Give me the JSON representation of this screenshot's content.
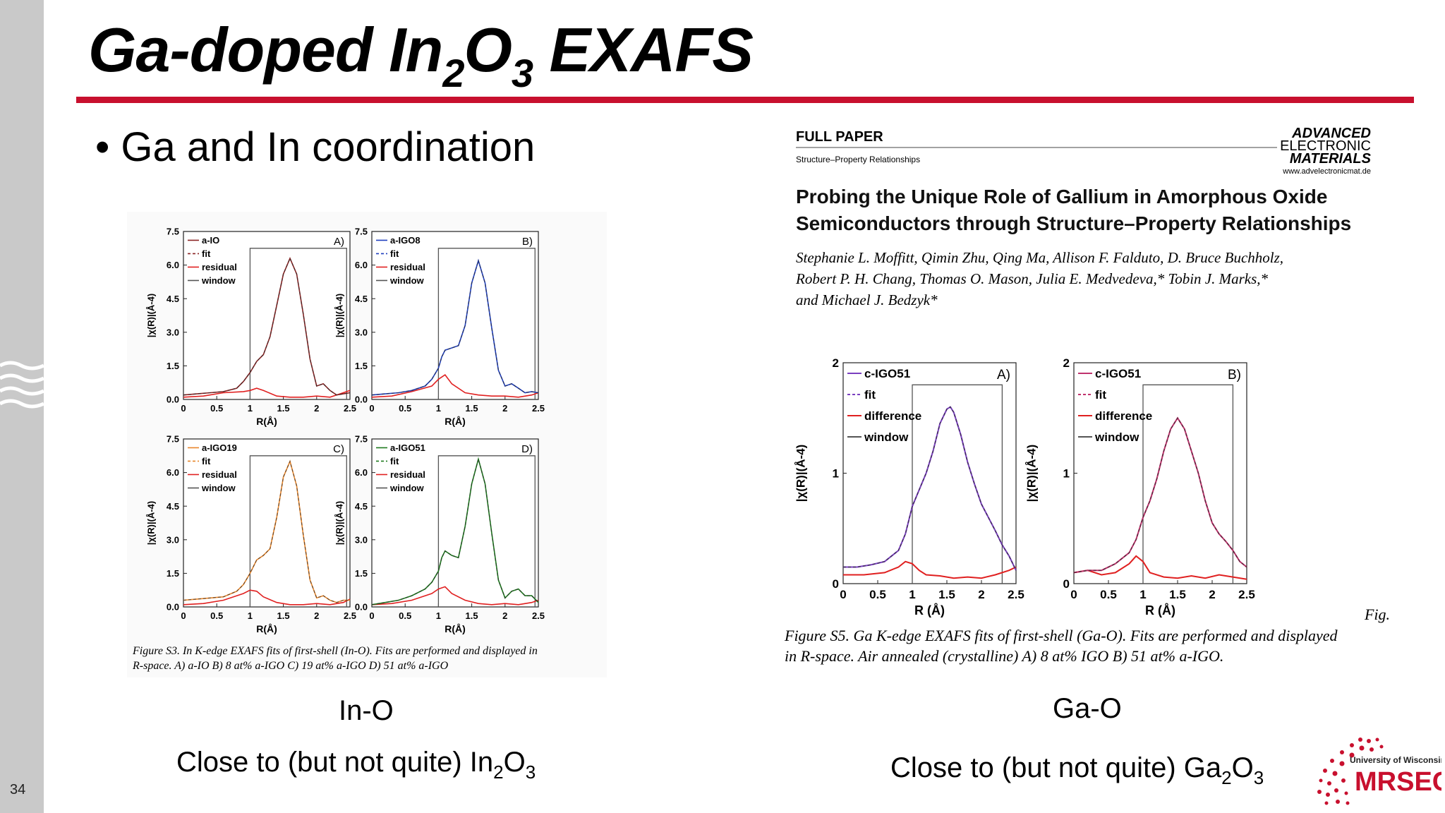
{
  "slide": {
    "title_main": "Ga-doped In",
    "title_sub1": "2",
    "title_mid": "O",
    "title_sub2": "3",
    "title_end": " EXAFS",
    "bullet": "• Ga and In coordination",
    "slide_number": "34",
    "left_caption": "In-O",
    "left_note": "Close to (but not quite) In",
    "left_note_sub1": "2",
    "left_note_o": "O",
    "left_note_sub2": "3",
    "right_caption": "Ga-O",
    "right_note": "Close to (but not quite) Ga",
    "right_note_sub1": "2",
    "right_note_o": "O",
    "right_note_sub2": "3",
    "logo_top": "University of Wisconsin",
    "logo_main": "MRSEC"
  },
  "paper": {
    "label": "FULL PAPER",
    "section": "Structure–Property Relationships",
    "journal1": "ADVANCED",
    "journal2": "ELECTRONIC",
    "journal3": "MATERIALS",
    "journal_url": "www.advelectronicmat.de",
    "title1": "Probing the Unique Role of Gallium in Amorphous Oxide",
    "title2": "Semiconductors through Structure–Property Relationships",
    "authors1": "Stephanie L. Moffitt, Qimin Zhu, Qing Ma, Allison F. Falduto, D. Bruce Buchholz,",
    "authors2": "Robert P. H. Chang, Thomas O. Mason, Julia E. Medvedeva,* Tobin J. Marks,*",
    "authors3": "and Michael J. Bedzyk*"
  },
  "figure_s3_caption1": "Figure S3. In K-edge EXAFS fits of first-shell (In-O). Fits are performed and displayed in",
  "figure_s3_caption2": "R-space. A) a-IO B) 8 at% a-IGO C) 19 at% a-IGO D) 51 at% a-IGO",
  "figure_s5_fig": "Fig.",
  "figure_s5_caption1": "Figure S5. Ga K-edge EXAFS fits of first-shell (Ga-O). Fits are performed and displayed",
  "figure_s5_caption2": "in R-space. Air annealed (crystalline) A) 8 at% IGO B) 51 at% a-IGO.",
  "chart_data": [
    {
      "type": "line",
      "panel": "A)",
      "sample": "a-IO",
      "color": "#8b2525",
      "xlabel": "R(Å)",
      "ylabel": "|χ(R)|(Å-4)",
      "xlim": [
        0,
        2.5
      ],
      "ylim": [
        0,
        7.5
      ],
      "xticks": [
        "0",
        "0.5",
        "1",
        "1.5",
        "2",
        "2.5"
      ],
      "yticks": [
        "0.0",
        "1.5",
        "3.0",
        "4.5",
        "6.0",
        "7.5"
      ],
      "legend": [
        "a-IO",
        "fit",
        "residual",
        "window"
      ],
      "window": [
        1.0,
        2.45
      ],
      "series": [
        {
          "name": "a-IO",
          "x": [
            0,
            0.2,
            0.4,
            0.6,
            0.8,
            0.9,
            1.0,
            1.1,
            1.2,
            1.3,
            1.4,
            1.5,
            1.6,
            1.7,
            1.8,
            1.9,
            2.0,
            2.1,
            2.2,
            2.3,
            2.4,
            2.5
          ],
          "y": [
            0.2,
            0.25,
            0.3,
            0.35,
            0.5,
            0.8,
            1.2,
            1.7,
            2.0,
            2.8,
            4.2,
            5.6,
            6.3,
            5.6,
            3.8,
            1.8,
            0.6,
            0.7,
            0.4,
            0.2,
            0.25,
            0.3
          ]
        },
        {
          "name": "residual",
          "x": [
            0,
            0.3,
            0.6,
            0.9,
            1.0,
            1.1,
            1.2,
            1.4,
            1.6,
            1.8,
            2.0,
            2.2,
            2.4,
            2.5
          ],
          "y": [
            0.1,
            0.15,
            0.3,
            0.35,
            0.4,
            0.5,
            0.4,
            0.15,
            0.1,
            0.1,
            0.15,
            0.1,
            0.3,
            0.4
          ]
        }
      ]
    },
    {
      "type": "line",
      "panel": "B)",
      "sample": "a-IGO8",
      "color": "#1f3fbf",
      "xlabel": "R(Å)",
      "ylabel": "|χ(R)|(Å-4)",
      "xlim": [
        0,
        2.5
      ],
      "ylim": [
        0,
        7.5
      ],
      "xticks": [
        "0",
        "0.5",
        "1",
        "1.5",
        "2",
        "2.5"
      ],
      "yticks": [
        "0.0",
        "1.5",
        "3.0",
        "4.5",
        "6.0",
        "7.5"
      ],
      "legend": [
        "a-IGO8",
        "fit",
        "residual",
        "window"
      ],
      "window": [
        1.0,
        2.45
      ],
      "series": [
        {
          "name": "a-IGO8",
          "x": [
            0,
            0.2,
            0.4,
            0.6,
            0.8,
            0.9,
            1.0,
            1.05,
            1.1,
            1.2,
            1.3,
            1.4,
            1.5,
            1.6,
            1.7,
            1.8,
            1.9,
            2.0,
            2.1,
            2.2,
            2.3,
            2.4,
            2.5
          ],
          "y": [
            0.2,
            0.25,
            0.3,
            0.4,
            0.6,
            0.9,
            1.4,
            1.9,
            2.2,
            2.3,
            2.4,
            3.3,
            5.2,
            6.2,
            5.2,
            3.2,
            1.3,
            0.6,
            0.7,
            0.5,
            0.3,
            0.35,
            0.3
          ]
        },
        {
          "name": "residual",
          "x": [
            0,
            0.3,
            0.6,
            0.9,
            1.0,
            1.1,
            1.2,
            1.4,
            1.6,
            1.8,
            2.0,
            2.2,
            2.4,
            2.5
          ],
          "y": [
            0.1,
            0.15,
            0.35,
            0.6,
            0.9,
            1.1,
            0.7,
            0.3,
            0.2,
            0.15,
            0.15,
            0.1,
            0.2,
            0.3
          ]
        }
      ]
    },
    {
      "type": "line",
      "panel": "C)",
      "sample": "a-IGO19",
      "color": "#e8862b",
      "xlabel": "R(Å)",
      "ylabel": "|χ(R)|(Å-4)",
      "xlim": [
        0,
        2.5
      ],
      "ylim": [
        0,
        7.5
      ],
      "xticks": [
        "0",
        "0.5",
        "1",
        "1.5",
        "2",
        "2.5"
      ],
      "yticks": [
        "0.0",
        "1.5",
        "3.0",
        "4.5",
        "6.0",
        "7.5"
      ],
      "legend": [
        "a-IGO19",
        "fit",
        "residual",
        "window"
      ],
      "window": [
        1.0,
        2.45
      ],
      "series": [
        {
          "name": "a-IGO19",
          "x": [
            0,
            0.2,
            0.4,
            0.6,
            0.8,
            0.9,
            1.0,
            1.1,
            1.2,
            1.3,
            1.4,
            1.5,
            1.6,
            1.7,
            1.8,
            1.9,
            2.0,
            2.1,
            2.2,
            2.3,
            2.4,
            2.5
          ],
          "y": [
            0.3,
            0.35,
            0.4,
            0.45,
            0.7,
            1.0,
            1.5,
            2.1,
            2.3,
            2.6,
            4.0,
            5.8,
            6.5,
            5.4,
            3.2,
            1.2,
            0.4,
            0.5,
            0.3,
            0.2,
            0.3,
            0.3
          ]
        },
        {
          "name": "residual",
          "x": [
            0,
            0.3,
            0.6,
            0.9,
            1.0,
            1.1,
            1.2,
            1.4,
            1.6,
            1.8,
            2.0,
            2.2,
            2.4,
            2.5
          ],
          "y": [
            0.1,
            0.15,
            0.3,
            0.6,
            0.75,
            0.7,
            0.45,
            0.2,
            0.1,
            0.1,
            0.15,
            0.1,
            0.2,
            0.35
          ]
        }
      ]
    },
    {
      "type": "line",
      "panel": "D)",
      "sample": "a-IGO51",
      "color": "#1e7a1e",
      "xlabel": "R(Å)",
      "ylabel": "|χ(R)|(Å-4)",
      "xlim": [
        0,
        2.5
      ],
      "ylim": [
        0,
        7.5
      ],
      "xticks": [
        "0",
        "0.5",
        "1",
        "1.5",
        "2",
        "2.5"
      ],
      "yticks": [
        "0.0",
        "1.5",
        "3.0",
        "4.5",
        "6.0",
        "7.5"
      ],
      "legend": [
        "a-IGO51",
        "fit",
        "residual",
        "window"
      ],
      "window": [
        1.0,
        2.45
      ],
      "series": [
        {
          "name": "a-IGO51",
          "x": [
            0,
            0.2,
            0.4,
            0.6,
            0.8,
            0.9,
            1.0,
            1.05,
            1.1,
            1.2,
            1.3,
            1.4,
            1.5,
            1.6,
            1.7,
            1.8,
            1.9,
            2.0,
            2.1,
            2.2,
            2.3,
            2.4,
            2.5
          ],
          "y": [
            0.1,
            0.2,
            0.3,
            0.5,
            0.8,
            1.1,
            1.6,
            2.2,
            2.5,
            2.3,
            2.2,
            3.6,
            5.5,
            6.6,
            5.5,
            3.3,
            1.2,
            0.4,
            0.7,
            0.8,
            0.5,
            0.5,
            0.2
          ]
        },
        {
          "name": "residual",
          "x": [
            0,
            0.3,
            0.6,
            0.9,
            1.0,
            1.1,
            1.2,
            1.4,
            1.6,
            1.8,
            2.0,
            2.2,
            2.4,
            2.5
          ],
          "y": [
            0.1,
            0.15,
            0.3,
            0.6,
            0.8,
            0.9,
            0.6,
            0.3,
            0.15,
            0.1,
            0.15,
            0.1,
            0.2,
            0.3
          ]
        }
      ]
    },
    {
      "type": "line",
      "panel": "A)",
      "sample": "c-IGO51",
      "color": "#7a3fc0",
      "xlabel": "R (Å)",
      "ylabel": "|χ(R)|(Å-4)",
      "xlim": [
        0,
        2.5
      ],
      "ylim": [
        0,
        2
      ],
      "xticks": [
        "0",
        "0.5",
        "1",
        "1.5",
        "2",
        "2.5"
      ],
      "yticks": [
        "0",
        "1",
        "2"
      ],
      "legend": [
        "c-IGO51",
        "fit",
        "difference",
        "window"
      ],
      "window": [
        1.0,
        2.3
      ],
      "series": [
        {
          "name": "c-IGO51",
          "x": [
            0,
            0.2,
            0.4,
            0.6,
            0.8,
            0.9,
            1.0,
            1.1,
            1.2,
            1.3,
            1.4,
            1.5,
            1.55,
            1.6,
            1.7,
            1.8,
            1.9,
            2.0,
            2.1,
            2.2,
            2.3,
            2.4,
            2.5
          ],
          "y": [
            0.15,
            0.15,
            0.17,
            0.2,
            0.3,
            0.45,
            0.7,
            0.85,
            1.0,
            1.2,
            1.45,
            1.58,
            1.6,
            1.55,
            1.35,
            1.1,
            0.9,
            0.72,
            0.6,
            0.48,
            0.35,
            0.25,
            0.12
          ]
        },
        {
          "name": "difference",
          "x": [
            0,
            0.3,
            0.6,
            0.8,
            0.9,
            1.0,
            1.1,
            1.2,
            1.4,
            1.6,
            1.8,
            2.0,
            2.2,
            2.4,
            2.5
          ],
          "y": [
            0.08,
            0.08,
            0.1,
            0.15,
            0.2,
            0.18,
            0.12,
            0.08,
            0.07,
            0.05,
            0.06,
            0.05,
            0.08,
            0.12,
            0.15
          ]
        }
      ]
    },
    {
      "type": "line",
      "panel": "B)",
      "sample": "c-IGO51",
      "color": "#c0336e",
      "xlabel": "R (Å)",
      "ylabel": "|χ(R)|(Å-4)",
      "xlim": [
        0,
        2.5
      ],
      "ylim": [
        0,
        2
      ],
      "xticks": [
        "0",
        "0.5",
        "1",
        "1.5",
        "2",
        "2.5"
      ],
      "yticks": [
        "0",
        "1",
        "2"
      ],
      "legend": [
        "c-IGO51",
        "fit",
        "difference",
        "window"
      ],
      "window": [
        1.0,
        2.3
      ],
      "series": [
        {
          "name": "c-IGO51",
          "x": [
            0,
            0.2,
            0.4,
            0.6,
            0.8,
            0.9,
            1.0,
            1.1,
            1.2,
            1.3,
            1.4,
            1.5,
            1.6,
            1.7,
            1.8,
            1.9,
            2.0,
            2.1,
            2.2,
            2.3,
            2.4,
            2.5
          ],
          "y": [
            0.1,
            0.12,
            0.12,
            0.18,
            0.28,
            0.4,
            0.6,
            0.75,
            0.95,
            1.2,
            1.4,
            1.5,
            1.4,
            1.2,
            1.0,
            0.75,
            0.55,
            0.45,
            0.38,
            0.3,
            0.2,
            0.15
          ]
        },
        {
          "name": "difference",
          "x": [
            0,
            0.2,
            0.4,
            0.6,
            0.8,
            0.9,
            1.0,
            1.1,
            1.3,
            1.5,
            1.7,
            1.9,
            2.1,
            2.3,
            2.5
          ],
          "y": [
            0.1,
            0.12,
            0.08,
            0.1,
            0.18,
            0.25,
            0.2,
            0.1,
            0.06,
            0.05,
            0.07,
            0.05,
            0.08,
            0.06,
            0.04
          ]
        }
      ]
    }
  ]
}
